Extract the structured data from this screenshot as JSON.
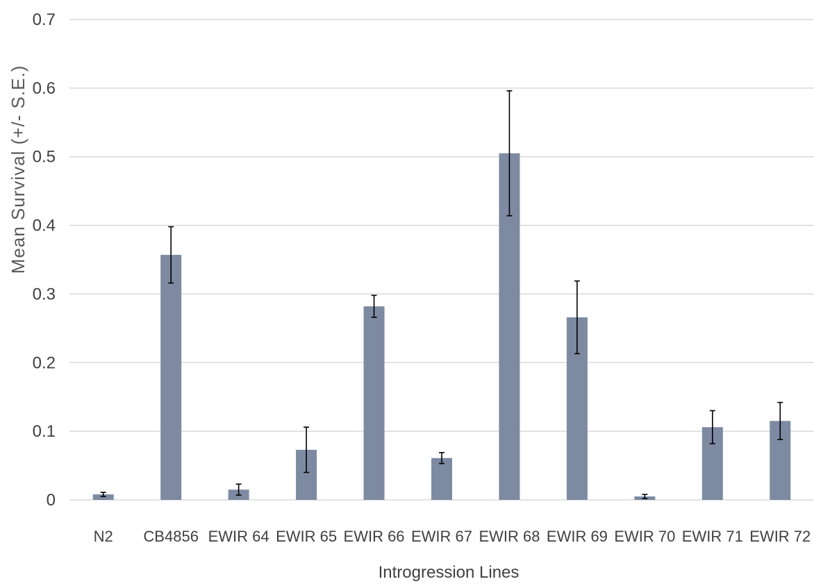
{
  "chart_data": {
    "type": "bar",
    "title": "",
    "xlabel": "Introgression Lines",
    "ylabel": "Mean Survival (+/- S.E.)",
    "ylim": [
      0,
      0.7
    ],
    "yticks": [
      0,
      0.1,
      0.2,
      0.3,
      0.4,
      0.5,
      0.6,
      0.7
    ],
    "ytick_labels": [
      "0",
      "0.1",
      "0.2",
      "0.3",
      "0.4",
      "0.5",
      "0.6",
      "0.7"
    ],
    "grid": true,
    "legend": "none",
    "categories": [
      "N2",
      "CB4856",
      "EWIR 64",
      "EWIR 65",
      "EWIR 66",
      "EWIR 67",
      "EWIR 68",
      "EWIR 69",
      "EWIR 70",
      "EWIR 71",
      "EWIR 72"
    ],
    "values": [
      0.008,
      0.357,
      0.015,
      0.073,
      0.282,
      0.061,
      0.505,
      0.266,
      0.005,
      0.106,
      0.115
    ],
    "errors": [
      0.003,
      0.041,
      0.008,
      0.033,
      0.016,
      0.008,
      0.091,
      0.053,
      0.003,
      0.024,
      0.027
    ],
    "colors": {
      "bar": "#7d8aa2",
      "grid": "#d9d9d9",
      "error": "#000000",
      "text": "#404040"
    }
  }
}
